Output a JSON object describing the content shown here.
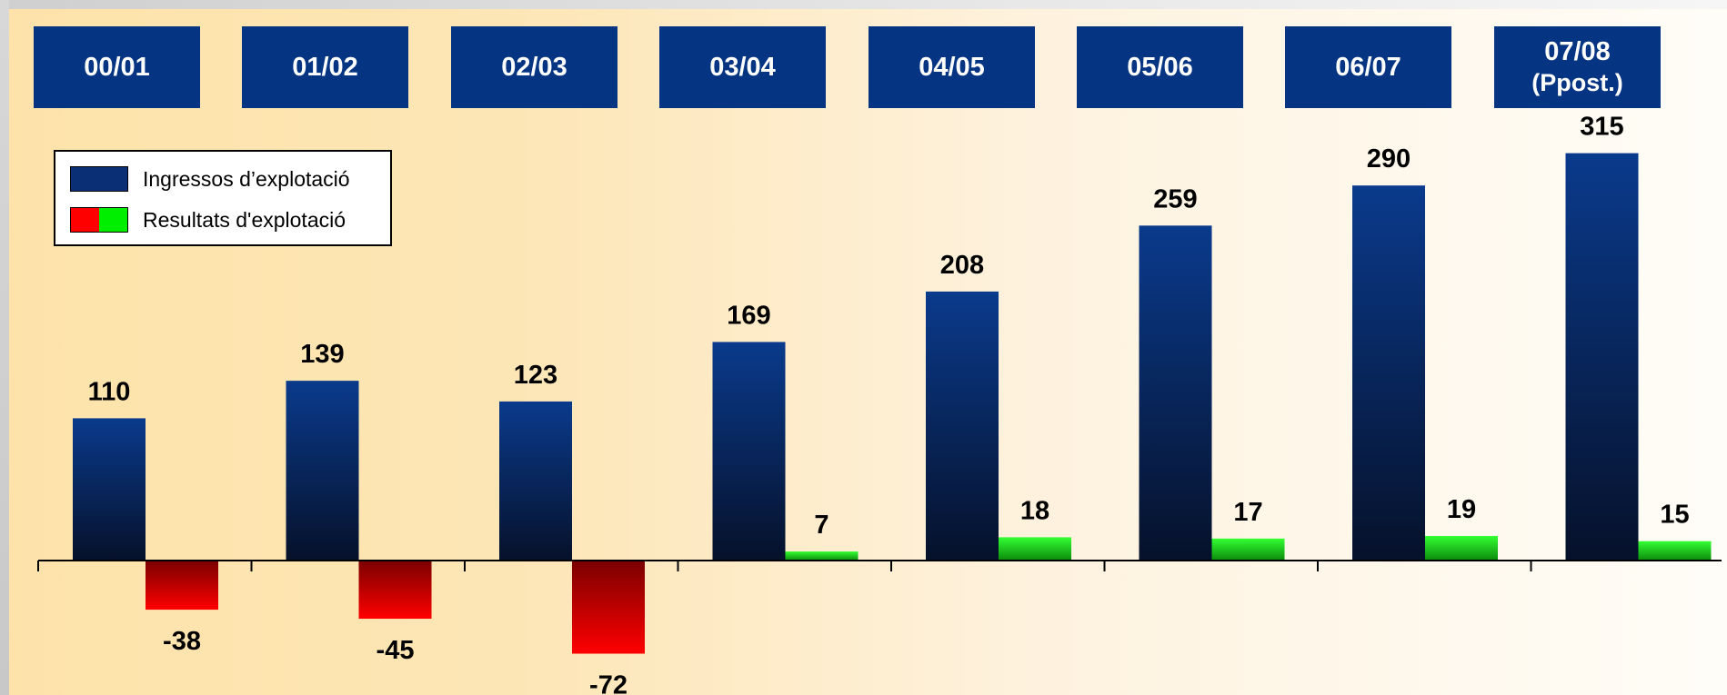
{
  "periods": [
    "00/01",
    "01/02",
    "02/03",
    "03/04",
    "04/05",
    "05/06",
    "06/07",
    "07/08"
  ],
  "period_note_last": "(Ppost.)",
  "legend": {
    "income": "Ingressos d’explotació",
    "result": "Resultats d'explotació"
  },
  "colors": {
    "header_box": "#043482",
    "income_top": "#0a3a8c",
    "income_bottom": "#06112a",
    "negative_top": "#7a0000",
    "negative_bottom": "#ff0000",
    "positive_top": "#33ff33",
    "positive_bottom": "#0b8a0b",
    "background_left": "#fde3aa",
    "background_right": "#fffdf8"
  },
  "chart_data": {
    "type": "bar",
    "categories": [
      "00/01",
      "01/02",
      "02/03",
      "03/04",
      "04/05",
      "05/06",
      "06/07",
      "07/08 (Ppost.)"
    ],
    "series": [
      {
        "name": "Ingressos d’explotació",
        "values": [
          110,
          139,
          123,
          169,
          208,
          259,
          290,
          315
        ]
      },
      {
        "name": "Resultats d'explotació",
        "values": [
          -38,
          -45,
          -72,
          7,
          18,
          17,
          19,
          15
        ]
      }
    ],
    "data_labels": {
      "income": [
        "110",
        "139",
        "123",
        "169",
        "208",
        "259",
        "290",
        "315"
      ],
      "result": [
        "-38",
        "-45",
        "-72",
        "7",
        "18",
        "17",
        "19",
        "15"
      ]
    },
    "legend_position": "top-left",
    "grid": false
  }
}
